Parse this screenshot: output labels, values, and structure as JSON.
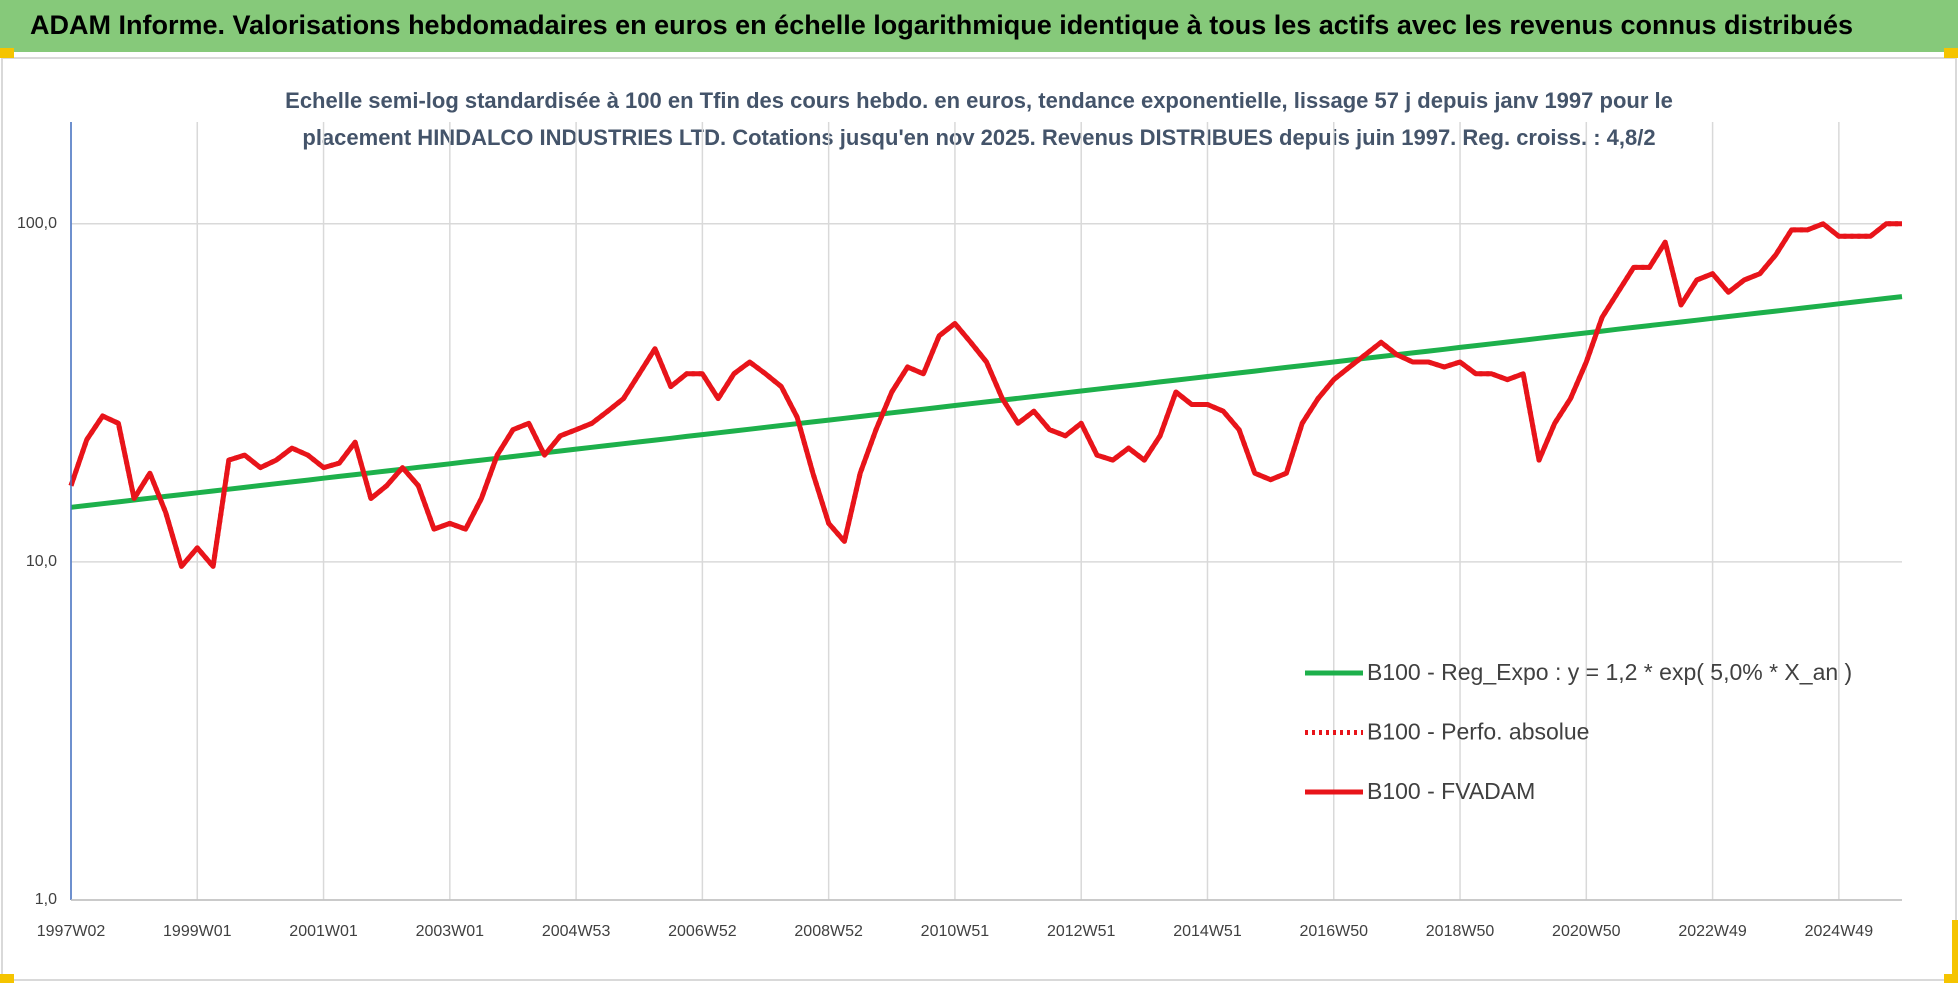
{
  "chart_data": {
    "type": "line",
    "title": "ADAM Informe. Valorisations hebdomadaires en euros en échelle logarithmique identique à tous les actifs avec les revenus connus distribués",
    "subtitle": [
      "Echelle semi-log standardisée à 100 en Tfin des cours hebdo. en euros, tendance exponentielle, lissage 57 j depuis janv 1997 pour le",
      "placement HINDALCO INDUSTRIES LTD. Cotations jusqu'en nov 2025. Revenus DISTRIBUES depuis juin 1997. Reg. croiss. : 4,8/2"
    ],
    "log_scale": true,
    "ylim": [
      1,
      200
    ],
    "yticks": [
      {
        "value": 1,
        "label": "1,0"
      },
      {
        "value": 10,
        "label": "10,0"
      },
      {
        "value": 100,
        "label": "100,0"
      }
    ],
    "grid": true,
    "legend": "right",
    "categories": [
      "1997W02",
      null,
      null,
      null,
      null,
      null,
      null,
      null,
      "1999W01",
      null,
      null,
      null,
      null,
      null,
      null,
      null,
      "2001W01",
      null,
      null,
      null,
      null,
      null,
      null,
      null,
      "2003W01",
      null,
      null,
      null,
      null,
      null,
      null,
      null,
      "2004W53",
      null,
      null,
      null,
      null,
      null,
      null,
      null,
      "2006W52",
      null,
      null,
      null,
      null,
      null,
      null,
      null,
      "2008W52",
      null,
      null,
      null,
      null,
      null,
      null,
      null,
      "2010W51",
      null,
      null,
      null,
      null,
      null,
      null,
      null,
      "2012W51",
      null,
      null,
      null,
      null,
      null,
      null,
      null,
      "2014W51",
      null,
      null,
      null,
      null,
      null,
      null,
      null,
      "2016W50",
      null,
      null,
      null,
      null,
      null,
      null,
      null,
      "2018W50",
      null,
      null,
      null,
      null,
      null,
      null,
      null,
      "2020W50",
      null,
      null,
      null,
      null,
      null,
      null,
      null,
      "2022W49",
      null,
      null,
      null,
      null,
      null,
      null,
      null,
      "2024W49",
      null,
      null,
      null,
      null
    ],
    "series": [
      {
        "name": "B100 - Reg_Expo : y = 1,2 * exp( 5,0% *  X_an )",
        "color": "#1db04b",
        "style": "solid",
        "values": [
          14.5,
          14.68,
          14.86,
          15.05,
          15.24,
          15.43,
          15.62,
          15.81,
          16.01,
          16.21,
          16.41,
          16.61,
          16.82,
          17.03,
          17.24,
          17.46,
          17.68,
          17.9,
          18.12,
          18.34,
          18.57,
          18.8,
          19.04,
          19.27,
          19.51,
          19.76,
          20.0,
          20.25,
          20.5,
          20.76,
          21.02,
          21.28,
          21.55,
          21.82,
          22.09,
          22.36,
          22.64,
          22.92,
          23.21,
          23.5,
          23.79,
          24.09,
          24.39,
          24.69,
          25.0,
          25.31,
          25.62,
          25.94,
          26.27,
          26.59,
          26.92,
          27.26,
          27.6,
          27.94,
          28.29,
          28.64,
          29.0,
          29.36,
          29.72,
          30.09,
          30.47,
          30.85,
          31.23,
          31.62,
          32.02,
          32.42,
          32.82,
          33.23,
          33.64,
          34.06,
          34.48,
          34.91,
          35.34,
          35.78,
          36.23,
          36.68,
          37.14,
          37.6,
          38.07,
          38.54,
          39.02,
          39.51,
          40.0,
          40.5,
          41.0,
          41.51,
          42.03,
          42.55,
          43.08,
          43.62,
          44.16,
          44.71,
          45.27,
          45.83,
          46.4,
          46.98,
          47.57,
          48.16,
          48.76,
          49.37,
          49.98,
          50.6,
          51.23,
          51.87,
          52.52,
          53.17,
          53.83,
          54.5,
          55.18,
          55.87,
          56.56,
          57.26,
          57.98,
          58.7,
          59.43,
          60.17,
          60.92
        ]
      },
      {
        "name": "B100 - Perfo. absolue",
        "color": "#e8141a",
        "style": "dotted",
        "values": [
          16.8,
          23,
          27,
          25.7,
          15.4,
          18.3,
          14,
          9.7,
          11,
          9.7,
          20,
          20.7,
          19,
          20,
          21.7,
          20.7,
          19,
          19.6,
          22.6,
          15.4,
          16.8,
          19,
          16.8,
          12.5,
          13,
          12.5,
          15.4,
          20.7,
          24.6,
          25.7,
          20.7,
          23.6,
          24.6,
          25.7,
          27.9,
          30.4,
          36,
          42.7,
          33,
          36,
          36,
          30.4,
          36,
          39,
          36,
          33,
          26.8,
          18.3,
          13,
          11.5,
          18.3,
          24.6,
          31.8,
          37.7,
          36,
          46.6,
          50.7,
          44.6,
          39,
          30.4,
          25.7,
          27.9,
          24.6,
          23.6,
          25.7,
          20.7,
          20,
          21.7,
          20,
          23.6,
          31.8,
          29.2,
          29.2,
          27.9,
          24.6,
          18.3,
          17.5,
          18.3,
          25.7,
          30.4,
          34.6,
          37.7,
          41,
          44.6,
          41,
          39,
          39,
          37.7,
          39,
          36,
          36,
          34.6,
          36,
          20,
          25.7,
          30.4,
          39,
          52.9,
          62.7,
          74.3,
          74.3,
          88.2,
          57.5,
          68.2,
          71.2,
          62.7,
          68.2,
          71.2,
          80.9,
          95.9,
          95.9,
          100,
          91.8,
          91.8,
          91.8,
          100,
          100
        ]
      },
      {
        "name": "B100 - FVADAM",
        "color": "#e8141a",
        "style": "solid",
        "values": [
          16.8,
          23,
          27,
          25.7,
          15.4,
          18.3,
          14,
          9.7,
          11,
          9.7,
          20,
          20.7,
          19,
          20,
          21.7,
          20.7,
          19,
          19.6,
          22.6,
          15.4,
          16.8,
          19,
          16.8,
          12.5,
          13,
          12.5,
          15.4,
          20.7,
          24.6,
          25.7,
          20.7,
          23.6,
          24.6,
          25.7,
          27.9,
          30.4,
          36,
          42.7,
          33,
          36,
          36,
          30.4,
          36,
          39,
          36,
          33,
          26.8,
          18.3,
          13,
          11.5,
          18.3,
          24.6,
          31.8,
          37.7,
          36,
          46.6,
          50.7,
          44.6,
          39,
          30.4,
          25.7,
          27.9,
          24.6,
          23.6,
          25.7,
          20.7,
          20,
          21.7,
          20,
          23.6,
          31.8,
          29.2,
          29.2,
          27.9,
          24.6,
          18.3,
          17.5,
          18.3,
          25.7,
          30.4,
          34.6,
          37.7,
          41,
          44.6,
          41,
          39,
          39,
          37.7,
          39,
          36,
          36,
          34.6,
          36,
          20,
          25.7,
          30.4,
          39,
          52.9,
          62.7,
          74.3,
          74.3,
          88.2,
          57.5,
          68.2,
          71.2,
          62.7,
          68.2,
          71.2,
          80.9,
          95.9,
          95.9,
          100,
          91.8,
          91.8,
          91.8,
          100,
          100
        ]
      }
    ]
  }
}
